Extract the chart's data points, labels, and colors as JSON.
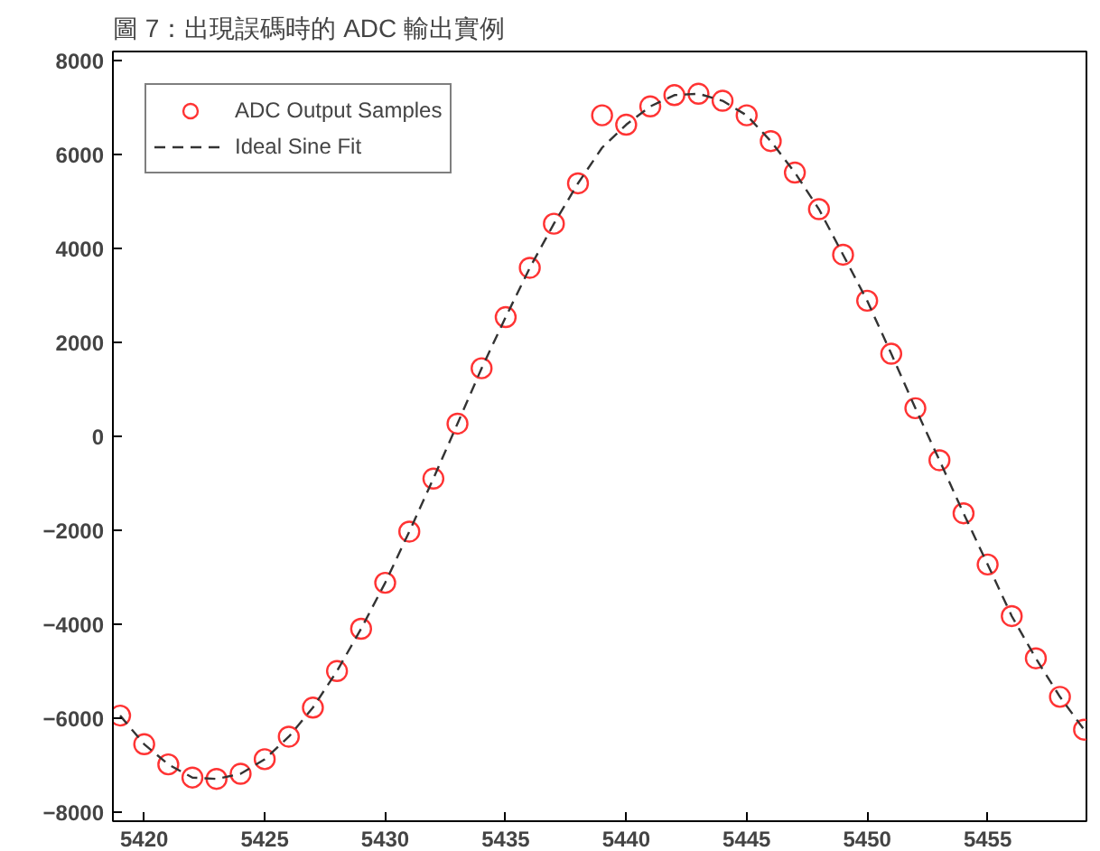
{
  "chart_data": {
    "type": "scatter",
    "title": "圖 7：出現誤碼時的 ADC 輸出實例",
    "x": [
      5419,
      5420,
      5421,
      5422,
      5423,
      5424,
      5425,
      5426,
      5427,
      5428,
      5429,
      5430,
      5431,
      5432,
      5433,
      5434,
      5435,
      5436,
      5437,
      5438,
      5439,
      5440,
      5441,
      5442,
      5443,
      5444,
      5445,
      5446,
      5447,
      5448,
      5449,
      5450,
      5451,
      5452,
      5453,
      5454,
      5455,
      5456,
      5457,
      5458,
      5459
    ],
    "series": [
      {
        "name": "ADC Output Samples",
        "marker": "circle",
        "color": "#ff3333",
        "values": [
          -5950,
          -6560,
          -6990,
          -7270,
          -7300,
          -7190,
          -6880,
          -6400,
          -5780,
          -5000,
          -4100,
          -3120,
          -2030,
          -900,
          270,
          1450,
          2540,
          3590,
          4530,
          5390,
          6840,
          6640,
          7030,
          7270,
          7300,
          7150,
          6840,
          6290,
          5620,
          4840,
          3870,
          2890,
          1760,
          600,
          -510,
          -1640,
          -2730,
          -3830,
          -4730,
          -5550,
          -6250
        ]
      },
      {
        "name": "Ideal Sine Fit",
        "type": "line",
        "line_style": "dashed",
        "color": "#333333",
        "values": [
          -5950,
          -6560,
          -6990,
          -7270,
          -7300,
          -7190,
          -6880,
          -6400,
          -5780,
          -5000,
          -4100,
          -3120,
          -2030,
          -900,
          270,
          1450,
          2540,
          3590,
          4530,
          5390,
          6150,
          6640,
          7030,
          7270,
          7300,
          7150,
          6840,
          6290,
          5620,
          4840,
          3870,
          2890,
          1760,
          600,
          -510,
          -1640,
          -2730,
          -3830,
          -4730,
          -5550,
          -6250
        ]
      }
    ],
    "xlim": [
      5418.7,
      5459.1
    ],
    "ylim": [
      -8200,
      8200
    ],
    "xticks": [
      5420,
      5425,
      5430,
      5435,
      5440,
      5445,
      5450,
      5455
    ],
    "yticks": [
      -8000,
      -6000,
      -4000,
      -2000,
      0,
      2000,
      4000,
      6000,
      8000
    ],
    "grid": false,
    "legend": "top left"
  }
}
